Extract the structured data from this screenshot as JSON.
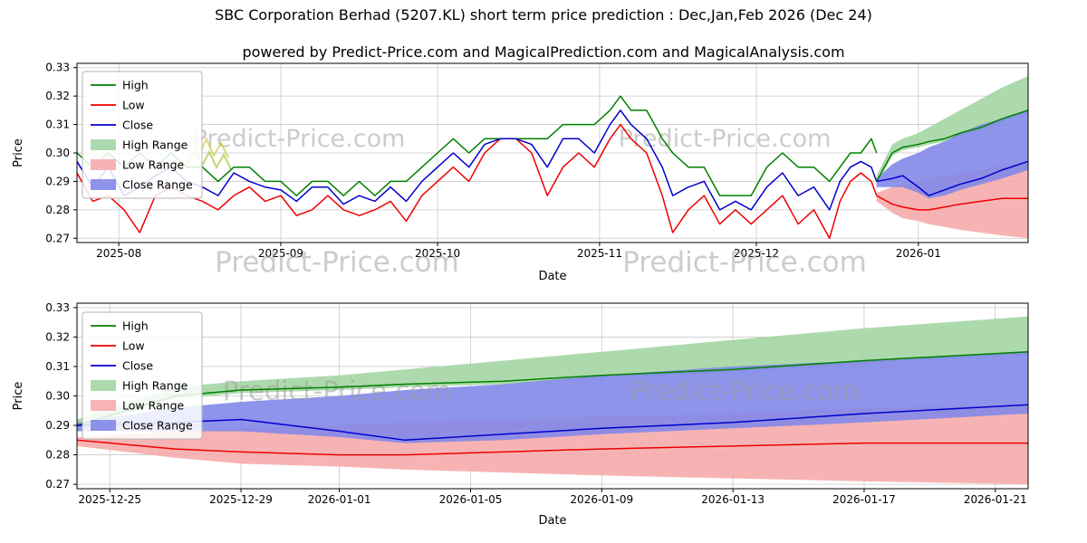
{
  "title": "SBC Corporation Berhad (5207.KL) short term price prediction : Dec,Jan,Feb 2026 (Dec 24)",
  "subtitle": "powered by Predict-Price.com and MagicalPrediction.com and MagicalAnalysis.com",
  "watermark_text": "Predict-Price.com",
  "legend_labels": [
    "High",
    "Low",
    "Close",
    "High Range",
    "Low Range",
    "Close Range"
  ],
  "colors": {
    "high": "#008000",
    "low": "#ee0000",
    "close": "#0000cd",
    "high_range": "#a3d6a3",
    "low_range": "#f6abab",
    "close_range": "#8288e8",
    "grid": "#c9c9c9",
    "watermark": "#9a9a9a"
  },
  "chart_data": [
    {
      "id": "history-and-forecast",
      "type": "line",
      "title": "SBC Corporation Berhad (5207.KL) short term price prediction : Dec,Jan,Feb 2026 (Dec 24)",
      "xlabel": "Date",
      "ylabel": "Price",
      "ylim": [
        0.2685,
        0.3315
      ],
      "yticks": [
        0.27,
        0.28,
        0.29,
        0.3,
        0.31,
        0.32,
        0.33
      ],
      "xdomain": [
        "2025-07-24",
        "2026-01-22"
      ],
      "xticks": [
        {
          "label": "2025-08",
          "date": "2025-08-01"
        },
        {
          "label": "2025-09",
          "date": "2025-09-01"
        },
        {
          "label": "2025-10",
          "date": "2025-10-01"
        },
        {
          "label": "2025-11",
          "date": "2025-11-01"
        },
        {
          "label": "2025-12",
          "date": "2025-12-01"
        },
        {
          "label": "2026-01",
          "date": "2026-01-01"
        }
      ],
      "history": {
        "dates": [
          "2025-07-24",
          "2025-07-27",
          "2025-07-30",
          "2025-08-02",
          "2025-08-05",
          "2025-08-08",
          "2025-08-11",
          "2025-08-14",
          "2025-08-17",
          "2025-08-20",
          "2025-08-23",
          "2025-08-26",
          "2025-08-29",
          "2025-09-01",
          "2025-09-04",
          "2025-09-07",
          "2025-09-10",
          "2025-09-13",
          "2025-09-16",
          "2025-09-19",
          "2025-09-22",
          "2025-09-25",
          "2025-09-28",
          "2025-10-01",
          "2025-10-04",
          "2025-10-07",
          "2025-10-10",
          "2025-10-13",
          "2025-10-16",
          "2025-10-19",
          "2025-10-22",
          "2025-10-25",
          "2025-10-28",
          "2025-10-31",
          "2025-11-03",
          "2025-11-05",
          "2025-11-07",
          "2025-11-10",
          "2025-11-13",
          "2025-11-15",
          "2025-11-18",
          "2025-11-21",
          "2025-11-24",
          "2025-11-27",
          "2025-11-30",
          "2025-12-03",
          "2025-12-06",
          "2025-12-09",
          "2025-12-12",
          "2025-12-15",
          "2025-12-17",
          "2025-12-19",
          "2025-12-21",
          "2025-12-23",
          "2025-12-24"
        ],
        "high": [
          0.3,
          0.295,
          0.3,
          0.295,
          0.3,
          0.295,
          0.3,
          0.295,
          0.295,
          0.29,
          0.295,
          0.295,
          0.29,
          0.29,
          0.285,
          0.29,
          0.29,
          0.285,
          0.29,
          0.285,
          0.29,
          0.29,
          0.295,
          0.3,
          0.305,
          0.3,
          0.305,
          0.305,
          0.305,
          0.305,
          0.305,
          0.31,
          0.31,
          0.31,
          0.315,
          0.32,
          0.315,
          0.315,
          0.305,
          0.3,
          0.295,
          0.295,
          0.285,
          0.285,
          0.285,
          0.295,
          0.3,
          0.295,
          0.295,
          0.29,
          0.295,
          0.3,
          0.3,
          0.305,
          0.3
        ],
        "low": [
          0.293,
          0.283,
          0.285,
          0.28,
          0.272,
          0.285,
          0.288,
          0.285,
          0.283,
          0.28,
          0.285,
          0.288,
          0.283,
          0.285,
          0.278,
          0.28,
          0.285,
          0.28,
          0.278,
          0.28,
          0.283,
          0.276,
          0.285,
          0.29,
          0.295,
          0.29,
          0.3,
          0.305,
          0.305,
          0.3,
          0.285,
          0.295,
          0.3,
          0.295,
          0.305,
          0.31,
          0.305,
          0.3,
          0.285,
          0.272,
          0.28,
          0.285,
          0.275,
          0.28,
          0.275,
          0.28,
          0.285,
          0.275,
          0.28,
          0.27,
          0.283,
          0.29,
          0.293,
          0.29,
          0.285
        ],
        "close": [
          0.297,
          0.288,
          0.295,
          0.285,
          0.288,
          0.292,
          0.295,
          0.29,
          0.288,
          0.285,
          0.293,
          0.29,
          0.288,
          0.287,
          0.283,
          0.288,
          0.288,
          0.282,
          0.285,
          0.283,
          0.288,
          0.283,
          0.29,
          0.295,
          0.3,
          0.295,
          0.303,
          0.305,
          0.305,
          0.303,
          0.295,
          0.305,
          0.305,
          0.3,
          0.31,
          0.315,
          0.31,
          0.305,
          0.295,
          0.285,
          0.288,
          0.29,
          0.28,
          0.283,
          0.28,
          0.288,
          0.293,
          0.285,
          0.288,
          0.28,
          0.29,
          0.295,
          0.297,
          0.295,
          0.29
        ]
      },
      "forecast": {
        "dates": [
          "2025-12-24",
          "2025-12-27",
          "2025-12-29",
          "2026-01-01",
          "2026-01-03",
          "2026-01-06",
          "2026-01-09",
          "2026-01-13",
          "2026-01-17",
          "2026-01-22"
        ],
        "high": [
          0.29,
          0.3,
          0.302,
          0.303,
          0.304,
          0.305,
          0.307,
          0.309,
          0.312,
          0.315
        ],
        "low": [
          0.285,
          0.282,
          0.281,
          0.28,
          0.28,
          0.281,
          0.282,
          0.283,
          0.284,
          0.284
        ],
        "close": [
          0.29,
          0.291,
          0.292,
          0.288,
          0.285,
          0.287,
          0.289,
          0.291,
          0.294,
          0.297
        ],
        "high_range": {
          "upper": [
            0.292,
            0.303,
            0.305,
            0.307,
            0.309,
            0.312,
            0.315,
            0.319,
            0.323,
            0.327
          ],
          "lower": [
            0.289,
            0.299,
            0.301,
            0.302,
            0.303,
            0.304,
            0.306,
            0.308,
            0.311,
            0.314
          ]
        },
        "low_range": {
          "upper": [
            0.286,
            0.288,
            0.289,
            0.29,
            0.291,
            0.292,
            0.293,
            0.294,
            0.296,
            0.297
          ],
          "lower": [
            0.283,
            0.279,
            0.277,
            0.276,
            0.275,
            0.274,
            0.273,
            0.272,
            0.271,
            0.27
          ]
        },
        "close_range": {
          "upper": [
            0.291,
            0.296,
            0.298,
            0.3,
            0.302,
            0.304,
            0.307,
            0.31,
            0.312,
            0.315
          ],
          "lower": [
            0.288,
            0.288,
            0.288,
            0.286,
            0.284,
            0.285,
            0.287,
            0.289,
            0.291,
            0.294
          ]
        }
      }
    },
    {
      "id": "forecast-detail",
      "type": "line",
      "xlabel": "Date",
      "ylabel": "Price",
      "ylim": [
        0.2685,
        0.3315
      ],
      "yticks": [
        0.27,
        0.28,
        0.29,
        0.3,
        0.31,
        0.32,
        0.33
      ],
      "xdomain": [
        "2025-12-24",
        "2026-01-22"
      ],
      "xticks": [
        {
          "label": "2025-12-25",
          "date": "2025-12-25"
        },
        {
          "label": "2025-12-29",
          "date": "2025-12-29"
        },
        {
          "label": "2026-01-01",
          "date": "2026-01-01"
        },
        {
          "label": "2026-01-05",
          "date": "2026-01-05"
        },
        {
          "label": "2026-01-09",
          "date": "2026-01-09"
        },
        {
          "label": "2026-01-13",
          "date": "2026-01-13"
        },
        {
          "label": "2026-01-17",
          "date": "2026-01-17"
        },
        {
          "label": "2026-01-21",
          "date": "2026-01-21"
        }
      ],
      "forecast": {
        "dates": [
          "2025-12-24",
          "2025-12-27",
          "2025-12-29",
          "2026-01-01",
          "2026-01-03",
          "2026-01-06",
          "2026-01-09",
          "2026-01-13",
          "2026-01-17",
          "2026-01-22"
        ],
        "high": [
          0.29,
          0.3,
          0.302,
          0.303,
          0.304,
          0.305,
          0.307,
          0.309,
          0.312,
          0.315
        ],
        "low": [
          0.285,
          0.282,
          0.281,
          0.28,
          0.28,
          0.281,
          0.282,
          0.283,
          0.284,
          0.284
        ],
        "close": [
          0.29,
          0.291,
          0.292,
          0.288,
          0.285,
          0.287,
          0.289,
          0.291,
          0.294,
          0.297
        ],
        "high_range": {
          "upper": [
            0.292,
            0.303,
            0.305,
            0.307,
            0.309,
            0.312,
            0.315,
            0.319,
            0.323,
            0.327
          ],
          "lower": [
            0.289,
            0.299,
            0.301,
            0.302,
            0.303,
            0.304,
            0.306,
            0.308,
            0.311,
            0.314
          ]
        },
        "low_range": {
          "upper": [
            0.286,
            0.288,
            0.289,
            0.29,
            0.291,
            0.292,
            0.293,
            0.294,
            0.296,
            0.297
          ],
          "lower": [
            0.283,
            0.279,
            0.277,
            0.276,
            0.275,
            0.274,
            0.273,
            0.272,
            0.271,
            0.27
          ]
        },
        "close_range": {
          "upper": [
            0.291,
            0.296,
            0.298,
            0.3,
            0.302,
            0.304,
            0.307,
            0.31,
            0.312,
            0.315
          ],
          "lower": [
            0.288,
            0.288,
            0.288,
            0.286,
            0.284,
            0.285,
            0.287,
            0.289,
            0.291,
            0.294
          ]
        }
      }
    }
  ]
}
